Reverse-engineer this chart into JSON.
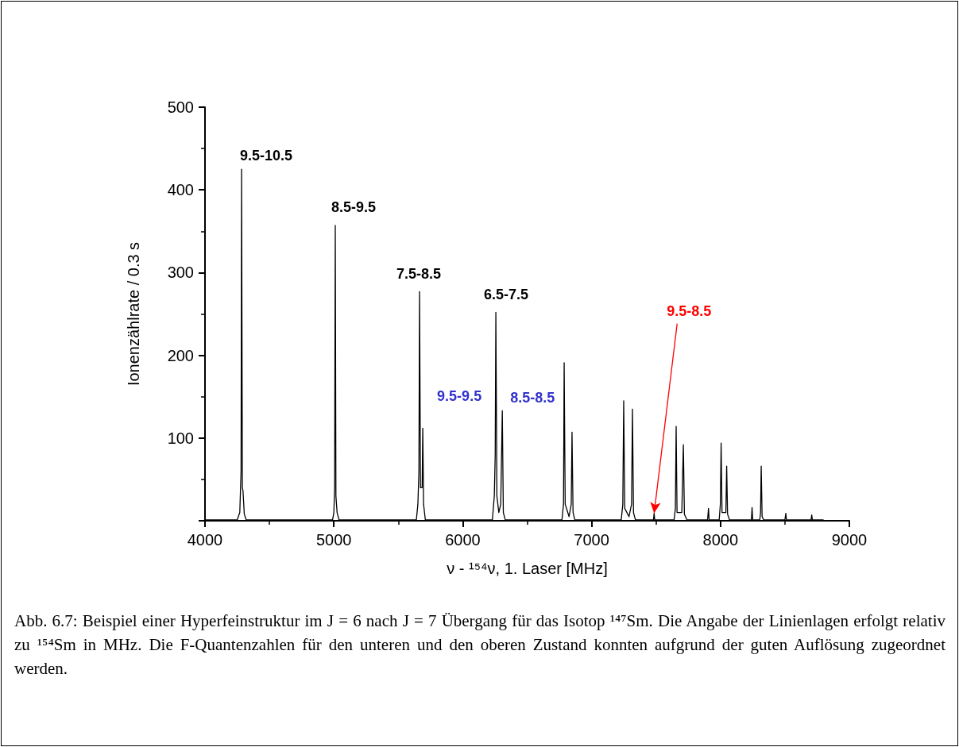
{
  "chart_data": {
    "type": "line",
    "xlabel": "ν - ¹⁵⁴ν, 1. Laser [MHz]",
    "ylabel": "Ionenzählrate / 0.3 s",
    "xlim": [
      4000,
      9000
    ],
    "xticks": [
      4000,
      5000,
      6000,
      7000,
      8000,
      9000
    ],
    "ylim": [
      0,
      500
    ],
    "yticks": [
      {
        "value": 0,
        "label": null
      },
      100,
      200,
      300,
      400,
      500
    ],
    "grid": false,
    "marker": "none",
    "line_style": "solid",
    "series": [
      {
        "color": "#000000",
        "x": [
          4000,
          4250,
          4270,
          4280,
          4284,
          4290,
          4295,
          4305,
          4320,
          4990,
          5000,
          5006,
          5011,
          5016,
          5025,
          5040,
          5640,
          5652,
          5660,
          5665,
          5672,
          5685,
          5690,
          5696,
          5710,
          6230,
          6245,
          6252,
          6257,
          6265,
          6280,
          6295,
          6307,
          6315,
          6330,
          6770,
          6782,
          6787,
          6795,
          6825,
          6842,
          6848,
          6856,
          6870,
          7230,
          7242,
          7249,
          7257,
          7290,
          7310,
          7317,
          7325,
          7340,
          7480,
          7485,
          7490,
          7640,
          7650,
          7656,
          7663,
          7700,
          7712,
          7720,
          7740,
          7900,
          7907,
          7912,
          7990,
          7999,
          8005,
          8012,
          8042,
          8048,
          8055,
          8070,
          8240,
          8245,
          8250,
          8305,
          8311,
          8316,
          8323,
          8335,
          8500,
          8507,
          8512,
          8703,
          8708,
          8713,
          8800
        ],
        "values": [
          1,
          1,
          10,
          60,
          425,
          40,
          36,
          8,
          1,
          1,
          10,
          40,
          357,
          30,
          10,
          1,
          1,
          20,
          60,
          277,
          40,
          40,
          112,
          20,
          1,
          1,
          30,
          80,
          252,
          30,
          10,
          20,
          133,
          10,
          1,
          1,
          20,
          191,
          20,
          5,
          20,
          107,
          10,
          1,
          1,
          20,
          145,
          15,
          5,
          20,
          135,
          10,
          1,
          1,
          9,
          1,
          1,
          15,
          114,
          10,
          10,
          92,
          8,
          1,
          1,
          15,
          1,
          1,
          20,
          94,
          10,
          10,
          66,
          8,
          1,
          1,
          16,
          1,
          1,
          10,
          66,
          5,
          1,
          1,
          9,
          1,
          1,
          7,
          1,
          1
        ]
      }
    ],
    "annotations": [
      {
        "text": "9.5-10.5",
        "x": 4284,
        "y": 425
      },
      {
        "text": "8.5-9.5",
        "x": 5011,
        "y": 357
      },
      {
        "text": "7.5-8.5",
        "x": 5665,
        "y": 277
      },
      {
        "text": "6.5-7.5",
        "x": 6257,
        "y": 252
      },
      {
        "text": "9.5-9.5",
        "x": 5690,
        "y": 112
      },
      {
        "text": "8.5-8.5",
        "x": 6307,
        "y": 133
      },
      {
        "text": "9.5-8.5",
        "x": 7485,
        "y": 9
      },
      "Abb. 6.7: Beispiel einer Hyperfeinstruktur im J = 6 nach J = 7 Übergang für das Isotop ¹⁴⁷Sm. Die Angabe der Linienlagen erfolgt relativ zu ¹⁵⁴Sm in MHz. Die F-Quantenzahlen für den unteren und den oberen Zustand konnten aufgrund der guten Auflösung zugeordnet werden."
    ]
  }
}
